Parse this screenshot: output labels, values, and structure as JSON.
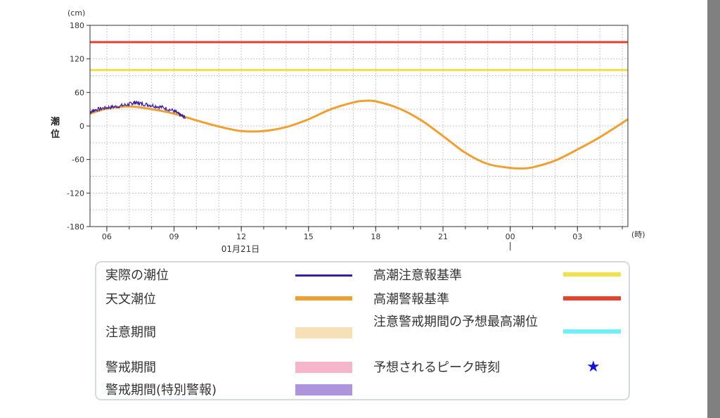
{
  "chart_data": {
    "type": "line",
    "title": "",
    "y_unit": "(cm)",
    "ylabel": "潮位",
    "x_unit": "(時)",
    "date_label": "01月21日",
    "ylim": [
      -180,
      180
    ],
    "y_ticks": [
      -180,
      -120,
      -60,
      0,
      60,
      120,
      180
    ],
    "x_ticks": [
      {
        "hour": 6,
        "label": "06"
      },
      {
        "hour": 9,
        "label": "09"
      },
      {
        "hour": 12,
        "label": "12"
      },
      {
        "hour": 15,
        "label": "15"
      },
      {
        "hour": 18,
        "label": "18"
      },
      {
        "hour": 21,
        "label": "21"
      },
      {
        "hour": 24,
        "label": "00"
      },
      {
        "hour": 27,
        "label": "03"
      }
    ],
    "xlim": [
      5.25,
      29.25
    ],
    "grid": true,
    "colors": {
      "actual": "#3a1f9e",
      "astronomical": "#f0a033",
      "caution_level": "#f2e24a",
      "warning_level": "#e5432f"
    },
    "series": [
      {
        "name": "天文潮位",
        "x": [
          5.25,
          6.0,
          7.0,
          8.0,
          9.0,
          10.0,
          11.0,
          12.0,
          13.0,
          14.0,
          15.0,
          16.0,
          17.0,
          17.5,
          18.0,
          19.0,
          20.0,
          21.0,
          22.0,
          23.0,
          24.0,
          24.5,
          25.0,
          26.0,
          27.0,
          28.0,
          29.25
        ],
        "y": [
          22,
          31,
          35,
          30,
          22,
          10,
          -1,
          -9,
          -9,
          -2,
          12,
          30,
          42,
          45,
          44,
          32,
          11,
          -18,
          -48,
          -68,
          -75,
          -76,
          -74,
          -62,
          -42,
          -20,
          12
        ]
      },
      {
        "name": "実際の潮位",
        "x": [
          5.25,
          5.5,
          6.0,
          6.5,
          7.0,
          7.25,
          7.5,
          8.0,
          8.5,
          9.0,
          9.25,
          9.5
        ],
        "y": [
          25,
          29,
          33,
          35,
          39,
          42,
          40,
          37,
          33,
          27,
          20,
          15
        ]
      }
    ],
    "reference_lines": [
      {
        "name": "高潮警報基準",
        "y": 150
      },
      {
        "name": "高潮注意報基準",
        "y": 100
      }
    ]
  },
  "legend": {
    "actual": "実際の潮位",
    "astronomical": "天文潮位",
    "caution_period": "注意期間",
    "warning_period": "警戒期間",
    "special_period": "警戒期間(特別警報)",
    "caution_std": "高潮注意報基準",
    "warning_std": "高潮警報基準",
    "forecast_max": "注意警戒期間の予想最高潮位",
    "peak_time": "予想されるピーク時刻"
  },
  "legend_colors": {
    "caution_period": "#f7dfb8",
    "warning_period": "#f5b5cb",
    "special_period": "#ad94dc",
    "forecast_max": "#6ff0f6",
    "peak_star": "#1414d2"
  },
  "icons": {
    "peak_marker": "★"
  }
}
